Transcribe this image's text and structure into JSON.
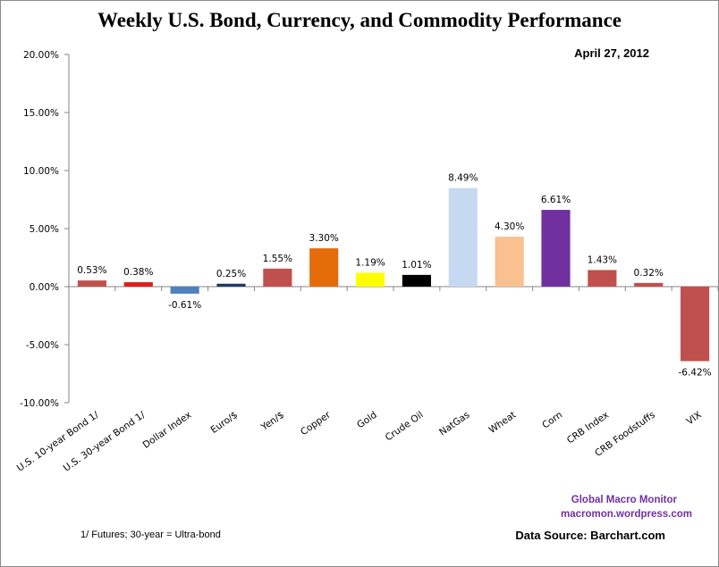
{
  "chart_data": {
    "type": "bar",
    "title": "Weekly U.S. Bond, Currency, and Commodity Performance",
    "subtitle": "April 27, 2012",
    "xlabel": "",
    "ylabel": "",
    "ylim": [
      -0.1,
      0.2
    ],
    "ytick_values": [
      0.2,
      0.15,
      0.1,
      0.05,
      0.0,
      -0.05,
      -0.1
    ],
    "ytick_labels": [
      "20.00%",
      "15.00%",
      "10.00%",
      "5.00%",
      "0.00%",
      "-5.00%",
      "-10.00%"
    ],
    "grid": false,
    "legend": "none",
    "categories": [
      "U.S. 10-year Bond 1/",
      "U.S. 30-year Bond 1/",
      "Dollar Index",
      "Euro/$",
      "Yen/$",
      "Copper",
      "Gold",
      "Crude Oil",
      "NatGas",
      "Wheat",
      "Corn",
      "CRB Index",
      "CRB Foodstuffs",
      "VIX"
    ],
    "values": [
      0.0053,
      0.0038,
      -0.0061,
      0.0025,
      0.0155,
      0.033,
      0.0119,
      0.0101,
      0.0849,
      0.043,
      0.0661,
      0.0143,
      0.0032,
      -0.0642
    ],
    "data_labels": [
      "0.53%",
      "0.38%",
      "-0.61%",
      "0.25%",
      "1.55%",
      "3.30%",
      "1.19%",
      "1.01%",
      "8.49%",
      "4.30%",
      "6.61%",
      "1.43%",
      "0.32%",
      "-6.42%"
    ],
    "colors": [
      "#c0504d",
      "#e01c1c",
      "#4f81bd",
      "#1f3864",
      "#c0504d",
      "#e36c09",
      "#ffff00",
      "#000000",
      "#c6d9f1",
      "#fac090",
      "#7030a0",
      "#c0504d",
      "#c0504d",
      "#c0504d"
    ]
  },
  "annotations": {
    "footnote": "1/ Futures; 30-year = Ultra-bond",
    "brand_line1": "Global Macro Monitor",
    "brand_line2": "macromon.wordpress.com",
    "source": "Data Source:  Barchart.com"
  }
}
